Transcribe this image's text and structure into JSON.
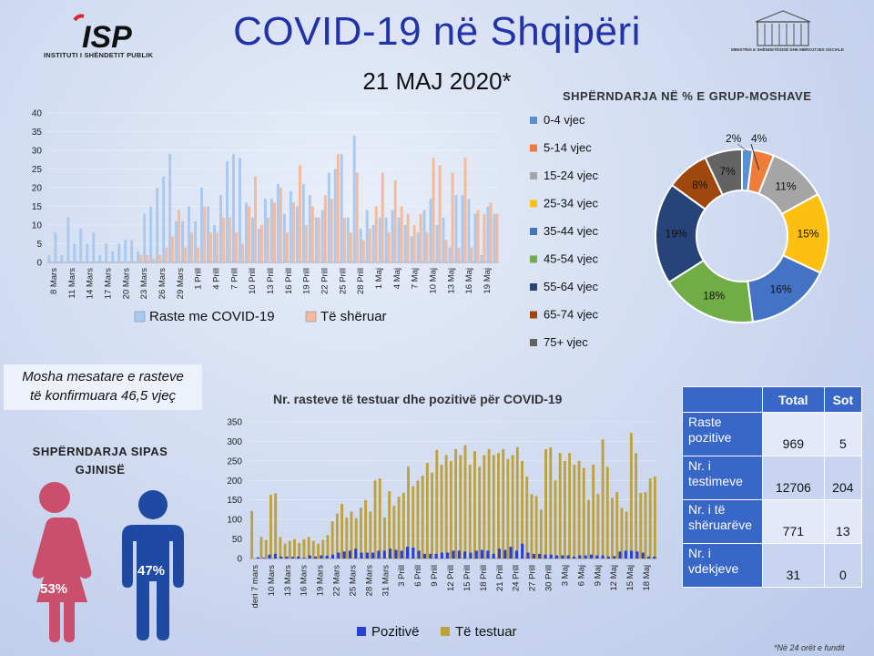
{
  "header": {
    "title": "COVID-19 në Shqipëri",
    "date": "21 MAJ 2020*",
    "institute": "INSTITUTI I SHËNDETIT PUBLIK",
    "ministry": "MINISTRIA E SHËNDETËSISË DHE MBROJTJES SOCIALE"
  },
  "age_note": {
    "line1": "Mosha mesatare e rasteve",
    "line2": "të konfirmuara 46,5 vjeç"
  },
  "gender": {
    "title_line1": "SHPËRNDARJA SIPAS",
    "title_line2": "GJINISË",
    "female": "53%",
    "male": "47%"
  },
  "footnote": "*Në 24 orët e fundit",
  "table": {
    "headers": [
      "Total",
      "Sot"
    ],
    "rows": [
      {
        "label_line1": "Raste",
        "label_line2": "pozitive",
        "total": "969",
        "today": "5"
      },
      {
        "label_line1": "Nr. i",
        "label_line2": "testimeve",
        "total": "12706",
        "today": "204"
      },
      {
        "label_line1": "Nr. i të",
        "label_line2": "shëruarëve",
        "total": "771",
        "today": "13"
      },
      {
        "label_line1": "Nr. i",
        "label_line2": "vdekjeve",
        "total": "31",
        "today": "0"
      }
    ]
  },
  "chart_data": [
    {
      "type": "bar",
      "title": "",
      "ylim": [
        0,
        40
      ],
      "yticks": [
        0,
        5,
        10,
        15,
        20,
        25,
        30,
        35,
        40
      ],
      "tick_labels": [
        "8 Mars",
        "11 Mars",
        "14 Mars",
        "17 Mars",
        "20 Mars",
        "23 Mars",
        "26 Mars",
        "29 Mars",
        "1 Prill",
        "4 Prill",
        "7 Prill",
        "10 Prill",
        "13 Prill",
        "16 Prill",
        "19 Prill",
        "22 Prill",
        "25 Prill",
        "28 Prill",
        "1 Maj",
        "4 Maj",
        "7 Maj",
        "10 Maj",
        "13 Maj",
        "16 Maj",
        "19 Maj"
      ],
      "legend": "bottom",
      "series": [
        {
          "name": "Raste me COVID-19",
          "color": "#a9c9ee",
          "values": [
            2,
            8,
            2,
            12,
            5,
            9,
            5,
            8,
            2,
            5,
            3,
            5,
            6,
            6,
            3,
            13,
            15,
            20,
            23,
            29,
            11,
            11,
            15,
            11,
            20,
            15,
            10,
            18,
            27,
            29,
            28,
            16,
            12,
            9,
            17,
            17,
            21,
            13,
            19,
            15,
            21,
            18,
            12,
            14,
            24,
            25,
            29,
            12,
            34,
            9,
            14,
            10,
            12,
            12,
            14,
            12,
            10,
            7,
            8,
            14,
            17,
            10,
            12,
            4,
            18,
            18,
            17,
            13,
            2,
            15,
            13
          ]
        },
        {
          "name": "Të shëruar",
          "color": "#f6b99a",
          "values": [
            0,
            0,
            0,
            0,
            0,
            0,
            0,
            0,
            0,
            0,
            0,
            0,
            0,
            0,
            2,
            2,
            1,
            2,
            4,
            7,
            14,
            4,
            8,
            4,
            15,
            8,
            8,
            12,
            12,
            8,
            5,
            15,
            23,
            10,
            12,
            16,
            20,
            8,
            16,
            26,
            10,
            15,
            12,
            18,
            17,
            29,
            12,
            8,
            24,
            6,
            9,
            15,
            24,
            8,
            22,
            15,
            13,
            10,
            13,
            8,
            28,
            26,
            6,
            24,
            4,
            28,
            4,
            14,
            13,
            16,
            13
          ]
        }
      ]
    },
    {
      "type": "pie",
      "title": "SHPËRNDARJA NË % E GRUP-MOSHAVE",
      "legend": "left",
      "slices": [
        {
          "label": "0-4 vjec",
          "value": 2,
          "color": "#5a8fd0"
        },
        {
          "label": "5-14 vjec",
          "value": 4,
          "color": "#ee7d3a"
        },
        {
          "label": "15-24 vjec",
          "value": 11,
          "color": "#a5a5a5"
        },
        {
          "label": "25-34 vjec",
          "value": 15,
          "color": "#fdc010"
        },
        {
          "label": "35-44 vjec",
          "value": 16,
          "color": "#4472c4"
        },
        {
          "label": "45-54 vjec",
          "value": 18,
          "color": "#71ad47"
        },
        {
          "label": "55-64 vjec",
          "value": 19,
          "color": "#264478"
        },
        {
          "label": "65-74 vjec",
          "value": 8,
          "color": "#9e480e"
        },
        {
          "label": "75+ vjec",
          "value": 7,
          "color": "#636363"
        }
      ]
    },
    {
      "type": "bar",
      "title": "Nr. rasteve të testuar dhe pozitivë për COVID-19",
      "ylim": [
        0,
        350
      ],
      "yticks": [
        0,
        50,
        100,
        150,
        200,
        250,
        300,
        350
      ],
      "tick_labels": [
        "deri 7 mars",
        "10 Mars",
        "13 Mars",
        "16 Mars",
        "19 Mars",
        "22 Mars",
        "25 Mars",
        "28 Mars",
        "31 Mars",
        "3 Prill",
        "6 Prill",
        "9 Prill",
        "12 Prill",
        "15 Prill",
        "18 Prill",
        "21 Prill",
        "24 Prill",
        "27 Prill",
        "30 Prill",
        "3 Maj",
        "6 Maj",
        "9 Maj",
        "12 Maj",
        "15 Maj",
        "18 Maj"
      ],
      "legend": "bottom",
      "series": [
        {
          "name": "Pozitivë",
          "color": "#2a3fd4",
          "values": [
            0,
            3,
            2,
            10,
            12,
            5,
            5,
            4,
            5,
            2,
            8,
            5,
            8,
            7,
            10,
            15,
            18,
            20,
            25,
            15,
            15,
            15,
            20,
            20,
            25,
            22,
            20,
            30,
            28,
            20,
            12,
            12,
            12,
            15,
            15,
            20,
            20,
            18,
            15,
            20,
            22,
            20,
            12,
            25,
            22,
            30,
            20,
            38,
            15,
            12,
            12,
            10,
            10,
            8,
            8,
            8,
            5,
            8,
            8,
            10,
            8,
            8,
            5,
            6,
            18,
            20,
            20,
            18,
            15,
            5,
            5
          ]
        },
        {
          "name": "Të testuar",
          "color": "#bfa13a",
          "values": [
            122,
            0,
            55,
            48,
            163,
            167,
            55,
            38,
            45,
            50,
            40,
            50,
            55,
            45,
            38,
            48,
            60,
            95,
            115,
            140,
            105,
            120,
            103,
            130,
            150,
            120,
            200,
            205,
            105,
            172,
            135,
            158,
            168,
            235,
            185,
            200,
            212,
            245,
            220,
            278,
            240,
            265,
            250,
            280,
            265,
            290,
            240,
            275,
            235,
            265,
            280,
            265,
            270,
            280,
            255,
            265,
            285,
            250,
            210,
            165,
            160,
            125,
            280,
            285,
            200,
            270,
            250,
            270,
            240,
            250,
            232,
            150,
            240,
            165,
            305,
            235,
            155,
            170,
            130,
            120,
            322,
            270,
            168,
            170,
            205,
            210
          ]
        }
      ]
    }
  ]
}
